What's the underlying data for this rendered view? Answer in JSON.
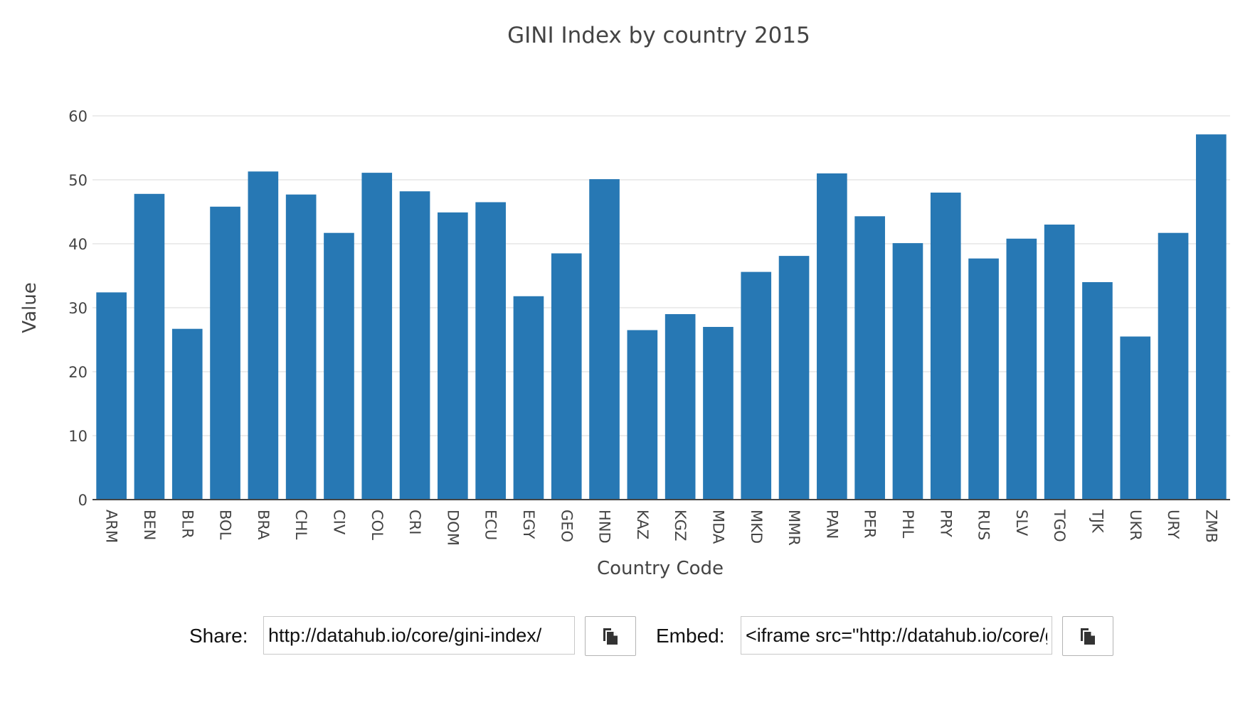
{
  "chart_data": {
    "type": "bar",
    "title": "GINI Index by country 2015",
    "xlabel": "Country Code",
    "ylabel": "Value",
    "ylim": [
      0,
      60
    ],
    "yticks": [
      "0",
      "10",
      "20",
      "30",
      "40",
      "50",
      "60"
    ],
    "grid": true,
    "bar_color": "#2778b4",
    "categories": [
      "ARM",
      "BEN",
      "BLR",
      "BOL",
      "BRA",
      "CHL",
      "CIV",
      "COL",
      "CRI",
      "DOM",
      "ECU",
      "EGY",
      "GEO",
      "HND",
      "KAZ",
      "KGZ",
      "MDA",
      "MKD",
      "MMR",
      "PAN",
      "PER",
      "PHL",
      "PRY",
      "RUS",
      "SLV",
      "TGO",
      "TJK",
      "UKR",
      "URY",
      "ZMB"
    ],
    "values": [
      32.4,
      47.8,
      26.7,
      45.8,
      51.3,
      47.7,
      41.7,
      51.1,
      48.2,
      44.9,
      46.5,
      31.8,
      38.5,
      50.1,
      26.5,
      29.0,
      27.0,
      35.6,
      38.1,
      51.0,
      44.3,
      40.1,
      48.0,
      37.7,
      40.8,
      43.0,
      34.0,
      25.5,
      41.7,
      57.1
    ]
  },
  "share": {
    "share_label": "Share:",
    "share_value": "http://datahub.io/core/gini-index/",
    "embed_label": "Embed:",
    "embed_value": "<iframe src=\"http://datahub.io/core/gini-index/"
  }
}
